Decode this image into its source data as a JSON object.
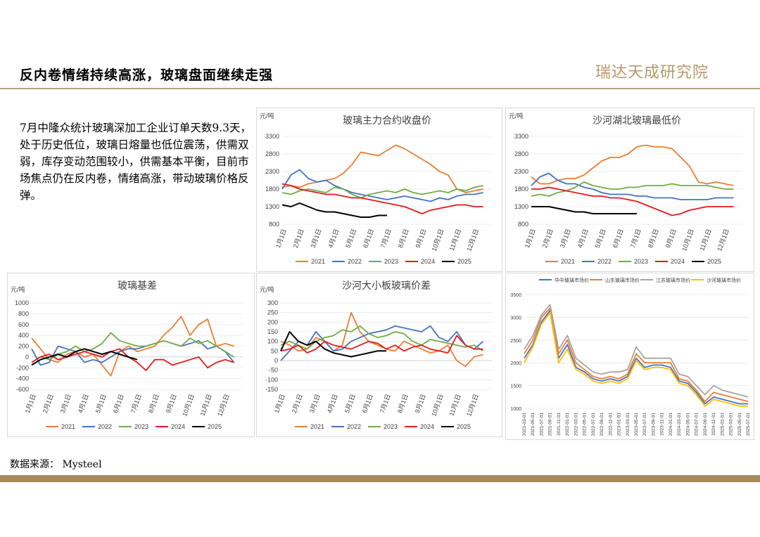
{
  "header": {
    "title": "反内卷情绪持续高涨，玻璃盘面继续走强",
    "logo": "瑞达天成研究院"
  },
  "description": "7月中隆众统计玻璃深加工企业订单天数9.3天， 处于历史低位，玻璃日熔量也低位震荡，供需双弱，库存变动范围较小，供需基本平衡，目前市场焦点仍在反内卷，情绪高涨，带动玻璃价格反弹。",
  "source": "数据来源： Mysteel",
  "colors": {
    "2021": "#ed7d31",
    "2022": "#4472c4",
    "2023": "#70ad47",
    "2024": "#e31a1c",
    "2025": "#000000",
    "accent": "#a9895e",
    "hz": "#4472c4",
    "sd": "#ed7d31",
    "js": "#a5a5a5",
    "sh": "#ffc000"
  },
  "month_labels": [
    "1月1日",
    "2月1日",
    "3月1日",
    "4月1日",
    "5月1日",
    "6月1日",
    "7月1日",
    "8月1日",
    "9月1日",
    "10月1日",
    "11月1日",
    "12月1日"
  ],
  "chart_data": [
    {
      "id": "fut",
      "type": "line",
      "title": "玻璃主力合约收盘价",
      "unit": "元/吨",
      "ylim": [
        800,
        3300
      ],
      "yticks": [
        800,
        1300,
        1800,
        2300,
        2800,
        3300
      ],
      "x_months": [
        0,
        0.5,
        1,
        1.5,
        2,
        2.5,
        3,
        3.5,
        4,
        4.5,
        5,
        5.5,
        6,
        6.5,
        7,
        7.5,
        8,
        8.5,
        9,
        9.5,
        10,
        10.5,
        11,
        11.5
      ],
      "legend": [
        "2021",
        "2022",
        "2023",
        "2024",
        "2025"
      ],
      "series": [
        {
          "name": "2021",
          "values": [
            1850,
            1900,
            1850,
            1950,
            2000,
            2050,
            2100,
            2250,
            2500,
            2850,
            2800,
            2750,
            2900,
            3050,
            2950,
            2800,
            2650,
            2500,
            2300,
            2200,
            1800,
            1700,
            1750,
            1800
          ]
        },
        {
          "name": "2022",
          "values": [
            1800,
            2200,
            2350,
            2100,
            2000,
            2050,
            1900,
            1800,
            1700,
            1650,
            1600,
            1550,
            1500,
            1550,
            1600,
            1550,
            1500,
            1450,
            1550,
            1500,
            1600,
            1650,
            1650,
            1700
          ]
        },
        {
          "name": "2023",
          "values": [
            1700,
            1650,
            1750,
            1800,
            1750,
            1700,
            1850,
            1800,
            1650,
            1550,
            1650,
            1700,
            1750,
            1700,
            1800,
            1700,
            1650,
            1700,
            1750,
            1700,
            1800,
            1750,
            1850,
            1900
          ]
        },
        {
          "name": "2024",
          "values": [
            1950,
            1900,
            1800,
            1750,
            1700,
            1650,
            1650,
            1600,
            1550,
            1550,
            1500,
            1450,
            1400,
            1350,
            1300,
            1200,
            1100,
            1200,
            1250,
            1300,
            1350,
            1350,
            1300,
            1300
          ]
        },
        {
          "name": "2025",
          "values": [
            1350,
            1300,
            1400,
            1300,
            1200,
            1150,
            1150,
            1100,
            1050,
            1000,
            1000,
            1050,
            1050,
            null,
            null,
            null,
            null,
            null,
            null,
            null,
            null,
            null,
            null,
            null
          ]
        }
      ]
    },
    {
      "id": "hb",
      "type": "line",
      "title": "沙河湖北玻璃最低价",
      "unit": "元/吨",
      "ylim": [
        800,
        3300
      ],
      "yticks": [
        800,
        1300,
        1800,
        2300,
        2800,
        3300
      ],
      "x_months": [
        0,
        0.5,
        1,
        1.5,
        2,
        2.5,
        3,
        3.5,
        4,
        4.5,
        5,
        5.5,
        6,
        6.5,
        7,
        7.5,
        8,
        8.5,
        9,
        9.5,
        10,
        10.5,
        11,
        11.5
      ],
      "legend": [
        "2021",
        "2022",
        "2023",
        "2024",
        "2025"
      ],
      "series": [
        {
          "name": "2021",
          "values": [
            2150,
            1950,
            1950,
            2050,
            2100,
            2100,
            2200,
            2400,
            2600,
            2700,
            2700,
            2800,
            3000,
            3050,
            3000,
            3000,
            2950,
            2700,
            2450,
            2000,
            1950,
            2000,
            1950,
            1900
          ]
        },
        {
          "name": "2022",
          "values": [
            1900,
            2150,
            2250,
            2050,
            1950,
            1950,
            1850,
            1800,
            1700,
            1650,
            1650,
            1650,
            1600,
            1600,
            1550,
            1550,
            1550,
            1500,
            1500,
            1500,
            1500,
            1550,
            1550,
            1550
          ]
        },
        {
          "name": "2023",
          "values": [
            1600,
            1650,
            1600,
            1700,
            1750,
            1850,
            2000,
            1900,
            1850,
            1800,
            1800,
            1850,
            1850,
            1900,
            1900,
            1900,
            1950,
            1900,
            1900,
            1900,
            1900,
            1850,
            1800,
            1800
          ]
        },
        {
          "name": "2024",
          "values": [
            1800,
            1800,
            1850,
            1800,
            1750,
            1700,
            1650,
            1600,
            1600,
            1550,
            1550,
            1500,
            1450,
            1350,
            1250,
            1150,
            1050,
            1100,
            1200,
            1250,
            1300,
            1300,
            1300,
            1300
          ]
        },
        {
          "name": "2025",
          "values": [
            1300,
            1300,
            1300,
            1250,
            1200,
            1150,
            1150,
            1100,
            1100,
            1100,
            1100,
            1100,
            1100,
            null,
            null,
            null,
            null,
            null,
            null,
            null,
            null,
            null,
            null,
            null
          ]
        }
      ]
    },
    {
      "id": "basis",
      "type": "line",
      "title": "玻璃基差",
      "unit": "元/吨",
      "ylim": [
        -600,
        1000
      ],
      "yticks": [
        -600,
        -400,
        -200,
        0,
        200,
        400,
        600,
        800,
        1000
      ],
      "x_months": [
        0,
        0.5,
        1,
        1.5,
        2,
        2.5,
        3,
        3.5,
        4,
        4.5,
        5,
        5.5,
        6,
        6.5,
        7,
        7.5,
        8,
        8.5,
        9,
        9.5,
        10,
        10.5,
        11,
        11.5
      ],
      "legend": [
        "2021",
        "2022",
        "2023",
        "2024",
        "2025"
      ],
      "series": [
        {
          "name": "2021",
          "values": [
            350,
            150,
            -50,
            -100,
            50,
            100,
            0,
            50,
            -150,
            -350,
            100,
            200,
            100,
            150,
            200,
            400,
            550,
            750,
            400,
            600,
            700,
            200,
            250,
            200
          ]
        },
        {
          "name": "2022",
          "values": [
            150,
            -150,
            -100,
            200,
            150,
            100,
            -100,
            -50,
            -100,
            0,
            100,
            150,
            150,
            200,
            250,
            300,
            250,
            200,
            250,
            300,
            150,
            200,
            100,
            -100
          ]
        },
        {
          "name": "2023",
          "values": [
            -100,
            0,
            -50,
            50,
            100,
            200,
            100,
            150,
            250,
            450,
            300,
            250,
            200,
            200,
            250,
            300,
            250,
            200,
            350,
            250,
            300,
            200,
            100,
            0
          ]
        },
        {
          "name": "2024",
          "values": [
            -100,
            0,
            50,
            -50,
            0,
            50,
            100,
            50,
            0,
            100,
            150,
            0,
            -100,
            -250,
            -50,
            -50,
            -150,
            -100,
            -50,
            0,
            -200,
            -100,
            -50,
            -100
          ]
        },
        {
          "name": "2025",
          "values": [
            -150,
            -50,
            0,
            50,
            0,
            100,
            150,
            100,
            50,
            100,
            50,
            0,
            -50,
            null,
            null,
            null,
            null,
            null,
            null,
            null,
            null,
            null,
            null,
            null
          ]
        }
      ]
    },
    {
      "id": "spread",
      "type": "line",
      "title": "沙河大小板玻璃价差",
      "unit": "元/吨",
      "ylim": [
        -150,
        300
      ],
      "yticks": [
        -150,
        -100,
        -50,
        0,
        50,
        100,
        150,
        200,
        250,
        300
      ],
      "x_months": [
        0,
        0.5,
        1,
        1.5,
        2,
        2.5,
        3,
        3.5,
        4,
        4.5,
        5,
        5.5,
        6,
        6.5,
        7,
        7.5,
        8,
        8.5,
        9,
        9.5,
        10,
        10.5,
        11,
        11.5
      ],
      "legend": [
        "2021",
        "2022",
        "2023",
        "2024",
        "2025"
      ],
      "series": [
        {
          "name": "2021",
          "values": [
            100,
            80,
            50,
            60,
            120,
            100,
            50,
            80,
            250,
            150,
            100,
            80,
            60,
            50,
            100,
            80,
            60,
            40,
            50,
            80,
            0,
            -30,
            20,
            30
          ]
        },
        {
          "name": "2022",
          "values": [
            0,
            50,
            100,
            80,
            150,
            100,
            50,
            60,
            100,
            120,
            140,
            150,
            160,
            180,
            170,
            160,
            150,
            180,
            120,
            100,
            150,
            80,
            60,
            100
          ]
        },
        {
          "name": "2023",
          "values": [
            80,
            100,
            80,
            60,
            100,
            120,
            130,
            160,
            150,
            180,
            140,
            120,
            130,
            150,
            140,
            100,
            80,
            110,
            100,
            90,
            80,
            70,
            80,
            50
          ]
        },
        {
          "name": "2024",
          "values": [
            50,
            60,
            80,
            40,
            60,
            100,
            80,
            70,
            60,
            80,
            100,
            90,
            60,
            80,
            50,
            70,
            80,
            60,
            50,
            40,
            130,
            80,
            60,
            60
          ]
        },
        {
          "name": "2025",
          "values": [
            50,
            150,
            100,
            80,
            100,
            60,
            40,
            30,
            20,
            30,
            40,
            50,
            50,
            null,
            null,
            null,
            null,
            null,
            null,
            null,
            null,
            null,
            null,
            null
          ]
        }
      ]
    },
    {
      "id": "market",
      "type": "line",
      "title": "",
      "unit": "",
      "ylim": [
        1000,
        3500
      ],
      "yticks": [
        1000,
        1500,
        2000,
        2500,
        3000,
        3500
      ],
      "x": [
        "2021-03-01",
        "2021-05-01",
        "2021-07-01",
        "2021-09-01",
        "2021-11-01",
        "2022-01-01",
        "2022-03-01",
        "2022-05-01",
        "2022-07-01",
        "2022-09-01",
        "2022-11-01",
        "2023-01-01",
        "2023-03-01",
        "2023-05-01",
        "2023-07-01",
        "2023-09-01",
        "2023-11-01",
        "2024-01-01",
        "2024-03-01",
        "2024-05-01",
        "2024-07-01",
        "2024-09-01",
        "2024-11-01",
        "2025-01-01",
        "2025-03-01",
        "2025-05-01",
        "2025-07-01"
      ],
      "legend": [
        "华中玻璃市场价",
        "山东玻璃市场价",
        "江苏玻璃市场价",
        "沙河玻璃市场价"
      ],
      "series": [
        {
          "name": "华中玻璃市场价",
          "values": [
            2100,
            2400,
            2900,
            3150,
            2100,
            2400,
            1900,
            1800,
            1650,
            1600,
            1650,
            1600,
            1700,
            2100,
            1900,
            1950,
            1950,
            1900,
            1600,
            1550,
            1350,
            1100,
            1250,
            1200,
            1150,
            1100,
            1100
          ]
        },
        {
          "name": "山东玻璃市场价",
          "values": [
            2200,
            2500,
            3000,
            3200,
            2200,
            2500,
            2000,
            1850,
            1700,
            1650,
            1700,
            1650,
            1750,
            2200,
            2000,
            2000,
            2000,
            2000,
            1650,
            1600,
            1400,
            1150,
            1350,
            1300,
            1250,
            1200,
            1150
          ]
        },
        {
          "name": "江苏玻璃市场价",
          "values": [
            2300,
            2600,
            3050,
            3280,
            2300,
            2600,
            2100,
            1950,
            1800,
            1750,
            1800,
            1800,
            1850,
            2350,
            2100,
            2100,
            2100,
            2100,
            1750,
            1700,
            1500,
            1300,
            1500,
            1400,
            1350,
            1300,
            1250
          ]
        },
        {
          "name": "沙河玻璃市场价",
          "values": [
            2000,
            2350,
            2850,
            3100,
            2000,
            2300,
            1850,
            1750,
            1600,
            1550,
            1600,
            1550,
            1650,
            2050,
            1850,
            1900,
            1900,
            1850,
            1550,
            1500,
            1300,
            1050,
            1200,
            1150,
            1100,
            1050,
            1050
          ]
        }
      ]
    }
  ]
}
